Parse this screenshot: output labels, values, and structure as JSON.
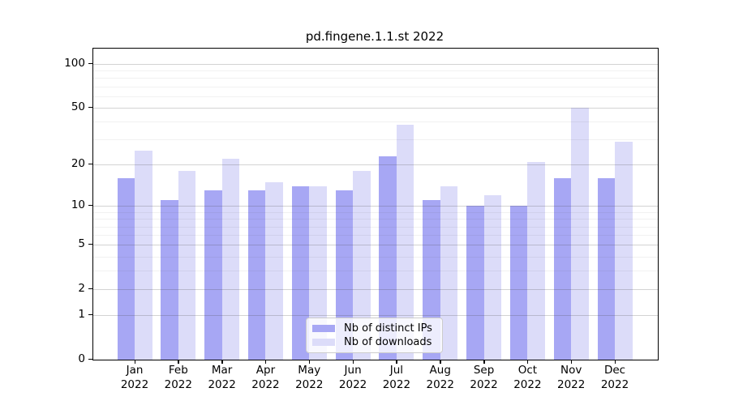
{
  "figure": {
    "title": "pd.fingene.1.1.st 2022",
    "background": "#ffffff"
  },
  "chart_data": {
    "type": "bar",
    "title": "pd.fingene.1.1.st 2022",
    "categories": [
      "Jan",
      "Feb",
      "Mar",
      "Apr",
      "May",
      "Jun",
      "Jul",
      "Aug",
      "Sep",
      "Oct",
      "Nov",
      "Dec"
    ],
    "category_year": "2022",
    "series": [
      {
        "name": "Nb of distinct IPs",
        "color": "#a7a7f4",
        "values": [
          16,
          11,
          13,
          13,
          14,
          13,
          23,
          11,
          10,
          10,
          16,
          16
        ]
      },
      {
        "name": "Nb of downloads",
        "color": "#dcdcf9",
        "values": [
          25,
          18,
          22,
          15,
          14,
          18,
          38,
          14,
          12,
          21,
          50,
          29
        ]
      }
    ],
    "xlabel": "",
    "ylabel": "",
    "y_scale": "log1p",
    "ylim": [
      0,
      127
    ],
    "y_ticks_major": [
      0,
      1,
      2,
      5,
      10,
      20,
      50,
      100
    ],
    "y_ticks_minor": [
      3,
      4,
      6,
      7,
      8,
      9,
      30,
      40,
      60,
      70,
      80,
      90
    ],
    "grid": true,
    "legend_position": "lower center"
  },
  "legend": {
    "items": [
      {
        "label": "Nb of distinct IPs",
        "color": "#a7a7f4"
      },
      {
        "label": "Nb of downloads",
        "color": "#dcdcf9"
      }
    ]
  },
  "colors": {
    "axis": "#000000",
    "major_grid": "#cfcfcf",
    "minor_grid": "#ededed",
    "legend_border": "#cccccc"
  }
}
